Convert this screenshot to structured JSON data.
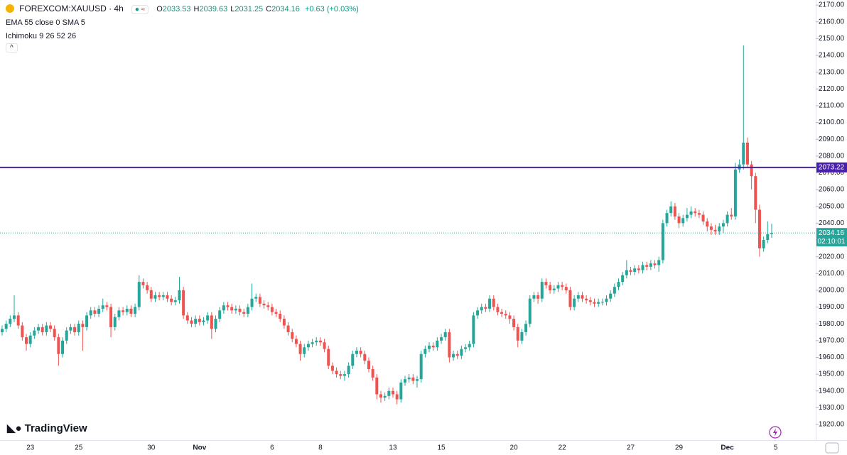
{
  "header": {
    "symbol": "FOREXCOM:XAUUSD · 4h",
    "ohlc_keys": [
      "O",
      "H",
      "L",
      "C"
    ],
    "change": "+0.63 (+0.03%)",
    "indicators": [
      "EMA 55 close 0 SMA 5",
      "Ichimoku 9 26 52 26"
    ],
    "watermark": "TradingView"
  },
  "chart_data": {
    "type": "candlestick",
    "up_color": "#26a69a",
    "down_color": "#ef5350",
    "ylim": [
      1910.7,
      2173
    ],
    "yticks": [
      {
        "value": 1920,
        "label": "1920.00"
      },
      {
        "value": 1930,
        "label": "1930.00"
      },
      {
        "value": 1940,
        "label": "1940.00"
      },
      {
        "value": 1950,
        "label": "1950.00"
      },
      {
        "value": 1960,
        "label": "1960.00"
      },
      {
        "value": 1970,
        "label": "1970.00"
      },
      {
        "value": 1980,
        "label": "1980.00"
      },
      {
        "value": 1990,
        "label": "1990.00"
      },
      {
        "value": 2000,
        "label": "2000.00"
      },
      {
        "value": 2010,
        "label": "2010.00"
      },
      {
        "value": 2020,
        "label": "2020.00"
      },
      {
        "value": 2030,
        "label": "2030.00"
      },
      {
        "value": 2040,
        "label": "2040.00"
      },
      {
        "value": 2050,
        "label": "2050.00"
      },
      {
        "value": 2060,
        "label": "2060.00"
      },
      {
        "value": 2070,
        "label": "2070.00"
      },
      {
        "value": 2080,
        "label": "2080.00"
      },
      {
        "value": 2090,
        "label": "2090.00"
      },
      {
        "value": 2100,
        "label": "2100.00"
      },
      {
        "value": 2110,
        "label": "2110.00"
      },
      {
        "value": 2120,
        "label": "2120.00"
      },
      {
        "value": 2130,
        "label": "2130.00"
      },
      {
        "value": 2140,
        "label": "2140.00"
      },
      {
        "value": 2150,
        "label": "2150.00"
      },
      {
        "value": 2160,
        "label": "2160.00"
      },
      {
        "value": 2170,
        "label": "2170.00"
      }
    ],
    "hline": {
      "value": 2073.22,
      "color": "#4a1fb0"
    },
    "countdown": "02:10:01",
    "categories": [
      null,
      null,
      null,
      null,
      null,
      null,
      null,
      "23",
      null,
      null,
      null,
      null,
      null,
      null,
      null,
      null,
      null,
      null,
      null,
      "25",
      null,
      null,
      null,
      null,
      null,
      null,
      null,
      null,
      null,
      null,
      null,
      null,
      null,
      null,
      null,
      null,
      null,
      "30",
      null,
      null,
      null,
      null,
      null,
      null,
      null,
      null,
      null,
      null,
      null,
      "Nov",
      null,
      null,
      null,
      null,
      null,
      null,
      null,
      null,
      null,
      null,
      null,
      null,
      null,
      null,
      null,
      null,
      null,
      "6",
      null,
      null,
      null,
      null,
      null,
      null,
      null,
      null,
      null,
      null,
      null,
      "8",
      null,
      null,
      null,
      null,
      null,
      null,
      null,
      null,
      null,
      null,
      null,
      null,
      null,
      null,
      null,
      null,
      null,
      "13",
      null,
      null,
      null,
      null,
      null,
      null,
      null,
      null,
      null,
      null,
      null,
      "15",
      null,
      null,
      null,
      null,
      null,
      null,
      null,
      null,
      null,
      null,
      null,
      null,
      null,
      null,
      null,
      null,
      null,
      "20",
      null,
      null,
      null,
      null,
      null,
      null,
      null,
      null,
      null,
      null,
      null,
      "22",
      null,
      null,
      null,
      null,
      null,
      null,
      null,
      null,
      null,
      null,
      null,
      null,
      null,
      null,
      null,
      null,
      "27",
      null,
      null,
      null,
      null,
      null,
      null,
      null,
      null,
      null,
      null,
      null,
      "29",
      null,
      null,
      null,
      null,
      null,
      null,
      null,
      null,
      null,
      null,
      null,
      "Dec",
      null,
      null,
      null,
      null,
      null,
      null,
      null,
      null,
      null,
      null,
      null,
      "5"
    ],
    "ohlc": [
      [
        1975,
        1979,
        1973,
        1977
      ],
      [
        1977,
        1982,
        1975,
        1980
      ],
      [
        1980,
        1985,
        1978,
        1983
      ],
      [
        1983,
        1997,
        1981,
        1985
      ],
      [
        1985,
        1987,
        1977,
        1979
      ],
      [
        1979,
        1981,
        1970,
        1972
      ],
      [
        1972,
        1974,
        1964,
        1968
      ],
      [
        1968,
        1975,
        1966,
        1973
      ],
      [
        1973,
        1978,
        1971,
        1976
      ],
      [
        1976,
        1980,
        1974,
        1978
      ],
      [
        1978,
        1980,
        1973,
        1975
      ],
      [
        1975,
        1981,
        1973,
        1979
      ],
      [
        1979,
        1981,
        1975,
        1977
      ],
      [
        1977,
        1979,
        1970,
        1972
      ],
      [
        1972,
        1974,
        1955,
        1962
      ],
      [
        1962,
        1972,
        1960,
        1970
      ],
      [
        1970,
        1978,
        1968,
        1976
      ],
      [
        1976,
        1980,
        1974,
        1978
      ],
      [
        1978,
        1980,
        1973,
        1975
      ],
      [
        1975,
        1982,
        1973,
        1980
      ],
      [
        1980,
        1982,
        1964,
        1978
      ],
      [
        1978,
        1987,
        1976,
        1985
      ],
      [
        1985,
        1990,
        1983,
        1988
      ],
      [
        1988,
        1990,
        1984,
        1986
      ],
      [
        1986,
        1991,
        1984,
        1989
      ],
      [
        1989,
        1995,
        1987,
        1991
      ],
      [
        1991,
        1993,
        1988,
        1990
      ],
      [
        1990,
        1992,
        1972,
        1978
      ],
      [
        1978,
        1986,
        1976,
        1984
      ],
      [
        1984,
        1990,
        1982,
        1988
      ],
      [
        1988,
        1990,
        1985,
        1987
      ],
      [
        1987,
        1991,
        1985,
        1989
      ],
      [
        1989,
        1991,
        1984,
        1986
      ],
      [
        1986,
        1992,
        1984,
        1990
      ],
      [
        1990,
        2009,
        1988,
        2005
      ],
      [
        2005,
        2007,
        2001,
        2003
      ],
      [
        2003,
        2005,
        1998,
        2000
      ],
      [
        2000,
        2002,
        1993,
        1995
      ],
      [
        1995,
        1999,
        1993,
        1997
      ],
      [
        1997,
        1999,
        1994,
        1996
      ],
      [
        1996,
        1999,
        1994,
        1997
      ],
      [
        1997,
        1999,
        1993,
        1995
      ],
      [
        1995,
        1997,
        1991,
        1993
      ],
      [
        1993,
        1996,
        1991,
        1994
      ],
      [
        1994,
        2008,
        1992,
        2000
      ],
      [
        2000,
        2002,
        1983,
        1985
      ],
      [
        1985,
        1987,
        1980,
        1982
      ],
      [
        1982,
        1984,
        1978,
        1980
      ],
      [
        1980,
        1985,
        1978,
        1983
      ],
      [
        1983,
        1985,
        1979,
        1981
      ],
      [
        1981,
        1984,
        1979,
        1982
      ],
      [
        1982,
        1987,
        1980,
        1985
      ],
      [
        1985,
        1987,
        1971,
        1977
      ],
      [
        1977,
        1985,
        1975,
        1983
      ],
      [
        1983,
        1990,
        1981,
        1988
      ],
      [
        1988,
        1993,
        1986,
        1991
      ],
      [
        1991,
        1993,
        1988,
        1990
      ],
      [
        1990,
        1992,
        1986,
        1988
      ],
      [
        1988,
        1991,
        1986,
        1989
      ],
      [
        1989,
        1991,
        1985,
        1987
      ],
      [
        1987,
        1989,
        1984,
        1986
      ],
      [
        1986,
        1992,
        1984,
        1990
      ],
      [
        1990,
        2004,
        1988,
        1995
      ],
      [
        1995,
        1998,
        1993,
        1996
      ],
      [
        1996,
        1998,
        1990,
        1992
      ],
      [
        1992,
        1994,
        1989,
        1991
      ],
      [
        1991,
        1993,
        1988,
        1990
      ],
      [
        1990,
        1992,
        1985,
        1987
      ],
      [
        1987,
        1989,
        1984,
        1986
      ],
      [
        1986,
        1988,
        1981,
        1983
      ],
      [
        1983,
        1985,
        1977,
        1979
      ],
      [
        1979,
        1981,
        1973,
        1975
      ],
      [
        1975,
        1977,
        1969,
        1971
      ],
      [
        1971,
        1973,
        1966,
        1968
      ],
      [
        1968,
        1970,
        1958,
        1962
      ],
      [
        1962,
        1968,
        1960,
        1966
      ],
      [
        1966,
        1970,
        1964,
        1968
      ],
      [
        1968,
        1971,
        1966,
        1969
      ],
      [
        1969,
        1972,
        1967,
        1970
      ],
      [
        1970,
        1972,
        1967,
        1969
      ],
      [
        1969,
        1971,
        1963,
        1965
      ],
      [
        1965,
        1967,
        1953,
        1955
      ],
      [
        1955,
        1957,
        1950,
        1952
      ],
      [
        1952,
        1954,
        1948,
        1950
      ],
      [
        1950,
        1952,
        1947,
        1949
      ],
      [
        1949,
        1952,
        1946,
        1950
      ],
      [
        1950,
        1957,
        1948,
        1955
      ],
      [
        1955,
        1964,
        1953,
        1962
      ],
      [
        1962,
        1966,
        1960,
        1964
      ],
      [
        1964,
        1966,
        1960,
        1962
      ],
      [
        1962,
        1964,
        1956,
        1958
      ],
      [
        1958,
        1960,
        1951,
        1953
      ],
      [
        1953,
        1955,
        1946,
        1948
      ],
      [
        1948,
        1950,
        1935,
        1938
      ],
      [
        1938,
        1940,
        1933,
        1936
      ],
      [
        1936,
        1939,
        1934,
        1937
      ],
      [
        1937,
        1942,
        1935,
        1940
      ],
      [
        1940,
        1942,
        1936,
        1938
      ],
      [
        1938,
        1940,
        1932,
        1935
      ],
      [
        1935,
        1947,
        1933,
        1945
      ],
      [
        1945,
        1949,
        1943,
        1947
      ],
      [
        1947,
        1950,
        1945,
        1948
      ],
      [
        1948,
        1950,
        1944,
        1946
      ],
      [
        1946,
        1949,
        1942,
        1947
      ],
      [
        1947,
        1964,
        1945,
        1962
      ],
      [
        1962,
        1967,
        1960,
        1965
      ],
      [
        1965,
        1969,
        1963,
        1967
      ],
      [
        1967,
        1969,
        1964,
        1966
      ],
      [
        1966,
        1972,
        1964,
        1970
      ],
      [
        1970,
        1974,
        1968,
        1972
      ],
      [
        1972,
        1977,
        1970,
        1975
      ],
      [
        1975,
        1977,
        1957,
        1960
      ],
      [
        1960,
        1964,
        1958,
        1962
      ],
      [
        1962,
        1964,
        1959,
        1961
      ],
      [
        1961,
        1967,
        1959,
        1965
      ],
      [
        1965,
        1968,
        1963,
        1966
      ],
      [
        1966,
        1970,
        1964,
        1968
      ],
      [
        1968,
        1987,
        1966,
        1985
      ],
      [
        1985,
        1990,
        1983,
        1988
      ],
      [
        1988,
        1992,
        1986,
        1990
      ],
      [
        1990,
        1992,
        1987,
        1989
      ],
      [
        1989,
        1997,
        1987,
        1995
      ],
      [
        1995,
        1997,
        1988,
        1990
      ],
      [
        1990,
        1992,
        1985,
        1987
      ],
      [
        1987,
        1989,
        1984,
        1986
      ],
      [
        1986,
        1988,
        1983,
        1985
      ],
      [
        1985,
        1987,
        1980,
        1983
      ],
      [
        1983,
        1985,
        1976,
        1978
      ],
      [
        1978,
        1980,
        1966,
        1970
      ],
      [
        1970,
        1977,
        1968,
        1975
      ],
      [
        1975,
        1982,
        1973,
        1980
      ],
      [
        1980,
        1997,
        1978,
        1995
      ],
      [
        1995,
        1999,
        1993,
        1997
      ],
      [
        1997,
        1999,
        1992,
        1995
      ],
      [
        1995,
        2007,
        1993,
        2005
      ],
      [
        2005,
        2007,
        2001,
        2003
      ],
      [
        2003,
        2005,
        1998,
        2000
      ],
      [
        2000,
        2003,
        1998,
        2001
      ],
      [
        2001,
        2005,
        1999,
        2003
      ],
      [
        2003,
        2005,
        2000,
        2002
      ],
      [
        2002,
        2004,
        1998,
        2000
      ],
      [
        2000,
        2002,
        1988,
        1990
      ],
      [
        1990,
        1997,
        1988,
        1995
      ],
      [
        1995,
        1999,
        1993,
        1997
      ],
      [
        1997,
        1999,
        1993,
        1995
      ],
      [
        1995,
        1997,
        1992,
        1994
      ],
      [
        1994,
        1996,
        1991,
        1993
      ],
      [
        1993,
        1995,
        1990,
        1992
      ],
      [
        1992,
        1995,
        1990,
        1993
      ],
      [
        1993,
        1995,
        1991,
        1993
      ],
      [
        1993,
        1997,
        1991,
        1995
      ],
      [
        1995,
        2000,
        1993,
        1998
      ],
      [
        1998,
        2004,
        1996,
        2002
      ],
      [
        2002,
        2007,
        2000,
        2005
      ],
      [
        2005,
        2011,
        2003,
        2009
      ],
      [
        2009,
        2018,
        2007,
        2012
      ],
      [
        2012,
        2014,
        2009,
        2011
      ],
      [
        2011,
        2015,
        2009,
        2013
      ],
      [
        2013,
        2015,
        2010,
        2012
      ],
      [
        2012,
        2017,
        2010,
        2015
      ],
      [
        2015,
        2017,
        2012,
        2014
      ],
      [
        2014,
        2018,
        2012,
        2016
      ],
      [
        2016,
        2018,
        2013,
        2015
      ],
      [
        2015,
        2020,
        2011,
        2018
      ],
      [
        2018,
        2042,
        2016,
        2040
      ],
      [
        2040,
        2048,
        2038,
        2046
      ],
      [
        2046,
        2053,
        2044,
        2050
      ],
      [
        2050,
        2052,
        2042,
        2044
      ],
      [
        2044,
        2046,
        2037,
        2040
      ],
      [
        2040,
        2045,
        2038,
        2043
      ],
      [
        2043,
        2049,
        2041,
        2045
      ],
      [
        2045,
        2050,
        2043,
        2047
      ],
      [
        2047,
        2049,
        2044,
        2046
      ],
      [
        2046,
        2048,
        2043,
        2045
      ],
      [
        2045,
        2047,
        2039,
        2041
      ],
      [
        2041,
        2043,
        2035,
        2038
      ],
      [
        2038,
        2040,
        2033,
        2036
      ],
      [
        2036,
        2039,
        2033,
        2035
      ],
      [
        2035,
        2040,
        2033,
        2038
      ],
      [
        2038,
        2042,
        2034,
        2040
      ],
      [
        2040,
        2047,
        2038,
        2045
      ],
      [
        2045,
        2049,
        2042,
        2044
      ],
      [
        2044,
        2076,
        2042,
        2072
      ],
      [
        2072,
        2078,
        2070,
        2075
      ],
      [
        2075,
        2146,
        2072,
        2088
      ],
      [
        2088,
        2091,
        2073,
        2075
      ],
      [
        2075,
        2077,
        2060,
        2068
      ],
      [
        2068,
        2070,
        2040,
        2048
      ],
      [
        2048,
        2051,
        2020,
        2025
      ],
      [
        2025,
        2032,
        2023,
        2030
      ],
      [
        2030,
        2041,
        2028,
        2033.53
      ],
      [
        2033.53,
        2039.63,
        2031.25,
        2034.16
      ]
    ]
  }
}
